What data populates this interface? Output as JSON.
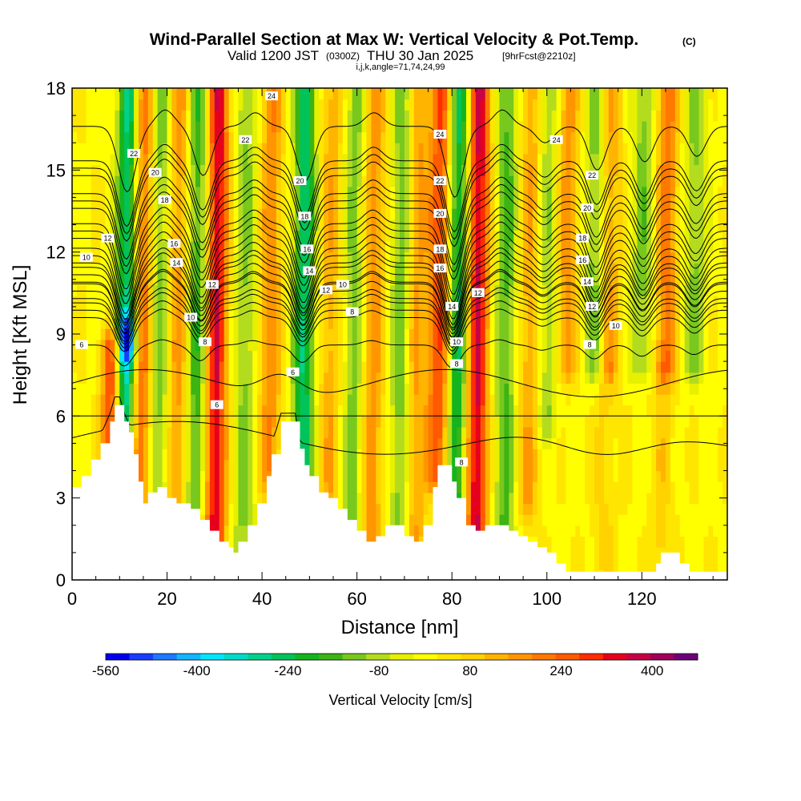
{
  "title": {
    "main": "Wind-Parallel Section at Max W: Vertical Velocity & Pot.Temp.",
    "copyright": "(C)",
    "line2_a": "Valid 1200 JST",
    "line2_b": "(0300Z)",
    "line2_c": "THU 30 Jan 2025",
    "line2_d": "[9hrFcst@2210z]",
    "line3": "i,j,k,angle=71,74,24,99"
  },
  "chart_data": {
    "type": "heatmap",
    "xlabel": "Distance [nm]",
    "ylabel": "Height [Kft MSL]",
    "xlim": [
      0,
      138
    ],
    "ylim": [
      0,
      18
    ],
    "x_ticks": [
      0,
      20,
      40,
      60,
      80,
      100,
      120
    ],
    "y_ticks": [
      0,
      3,
      6,
      9,
      12,
      15,
      18
    ],
    "colorbar": {
      "title": "Vertical Velocity [cm/s]",
      "tick_labels": [
        "-560",
        "-400",
        "-240",
        "-80",
        "80",
        "240",
        "400"
      ],
      "tick_values": [
        -560,
        -400,
        -240,
        -80,
        80,
        240,
        400
      ],
      "range": [
        -560,
        480
      ],
      "colors": [
        "#0000ee",
        "#1a3cff",
        "#1e78ff",
        "#14b4ff",
        "#00e6ff",
        "#00dcc8",
        "#00d28c",
        "#00c35a",
        "#14b41e",
        "#3cb414",
        "#78c81e",
        "#b4dc1e",
        "#e6f000",
        "#ffff00",
        "#ffe600",
        "#ffd200",
        "#ffb400",
        "#ff9600",
        "#ff7800",
        "#ff5a00",
        "#ff2d00",
        "#e6001e",
        "#c80046",
        "#a0005a",
        "#6e0078"
      ]
    },
    "terrain": {
      "x": [
        0,
        2,
        4,
        6,
        8,
        9,
        10,
        11,
        12,
        13,
        14,
        15,
        16,
        18,
        20,
        22,
        25,
        27,
        29,
        31,
        33,
        34,
        35,
        37,
        39,
        41,
        42,
        44,
        46,
        47,
        48,
        49,
        50,
        52,
        54,
        56,
        58,
        60,
        62,
        64,
        66,
        68,
        70,
        72,
        74,
        76,
        77,
        79,
        80,
        81,
        83,
        85,
        87,
        89,
        92,
        94,
        96,
        98,
        100,
        102,
        104,
        106,
        110,
        115,
        120,
        123,
        124,
        126,
        128,
        130,
        135,
        138
      ],
      "height_kft": [
        3.4,
        3.8,
        4.4,
        5.0,
        5.8,
        6.4,
        6.4,
        5.8,
        5.4,
        4.6,
        3.6,
        2.8,
        3.2,
        3.4,
        3.0,
        2.8,
        2.6,
        2.2,
        1.8,
        1.4,
        1.2,
        1.0,
        1.4,
        2.0,
        2.8,
        3.8,
        4.6,
        5.8,
        5.8,
        5.8,
        4.8,
        4.2,
        3.8,
        3.2,
        3.0,
        2.6,
        2.2,
        1.8,
        1.4,
        1.6,
        2.0,
        2.0,
        1.6,
        1.4,
        2.0,
        3.4,
        4.2,
        4.2,
        3.6,
        3.0,
        2.0,
        1.8,
        2.0,
        2.0,
        1.8,
        1.6,
        1.4,
        1.2,
        1.0,
        0.6,
        0.3,
        0.3,
        0.3,
        0.3,
        0.3,
        0.6,
        1.0,
        1.0,
        0.6,
        0.3,
        0.3,
        0.3
      ]
    },
    "w_features": [
      {
        "x": 8.5,
        "w": 360,
        "z0": 3.5,
        "z1": 8.5
      },
      {
        "x": 10.8,
        "w": -430,
        "z0": 5.5,
        "z1": 8.8
      },
      {
        "x": 11.5,
        "w": -300,
        "z0": 8.8,
        "z1": 18
      },
      {
        "x": 14.5,
        "w": 230,
        "z0": 3,
        "z1": 18
      },
      {
        "x": 18,
        "w": -160,
        "z0": 3,
        "z1": 18
      },
      {
        "x": 22,
        "w": 160,
        "z0": 3,
        "z1": 18
      },
      {
        "x": 26,
        "w": -200,
        "z0": 3,
        "z1": 18
      },
      {
        "x": 30,
        "w": 340,
        "z0": 1.2,
        "z1": 18
      },
      {
        "x": 36,
        "w": -130,
        "z0": 1,
        "z1": 18
      },
      {
        "x": 41.5,
        "w": 170,
        "z0": 4,
        "z1": 18
      },
      {
        "x": 48.5,
        "w": -280,
        "z0": 3.5,
        "z1": 18
      },
      {
        "x": 54,
        "w": 120,
        "z0": 2.5,
        "z1": 18
      },
      {
        "x": 59,
        "w": -140,
        "z0": 1.5,
        "z1": 18
      },
      {
        "x": 63,
        "w": 160,
        "z0": 1.5,
        "z1": 18
      },
      {
        "x": 69,
        "w": -160,
        "z0": 1.5,
        "z1": 18
      },
      {
        "x": 72,
        "w": 150,
        "z0": 1.5,
        "z1": 18
      },
      {
        "x": 77,
        "w": 260,
        "z0": 4,
        "z1": 18
      },
      {
        "x": 81,
        "w": -260,
        "z0": 3,
        "z1": 18
      },
      {
        "x": 85,
        "w": 360,
        "z0": 1.8,
        "z1": 18
      },
      {
        "x": 91,
        "w": -170,
        "z0": 2,
        "z1": 18
      },
      {
        "x": 96,
        "w": 130,
        "z0": 3,
        "z1": 18
      },
      {
        "x": 100,
        "w": -120,
        "z0": 6,
        "z1": 18
      },
      {
        "x": 104,
        "w": 160,
        "z0": 8,
        "z1": 18
      },
      {
        "x": 110,
        "w": -150,
        "z0": 8,
        "z1": 18
      },
      {
        "x": 113,
        "w": 140,
        "z0": 8,
        "z1": 18
      },
      {
        "x": 120,
        "w": -140,
        "z0": 8,
        "z1": 18
      },
      {
        "x": 125,
        "w": 200,
        "z0": 8,
        "z1": 18
      },
      {
        "x": 131,
        "w": -130,
        "z0": 8,
        "z1": 18
      },
      {
        "x": 112,
        "w": 60,
        "z0": 0.5,
        "z1": 7.5
      },
      {
        "x": 124,
        "w": 70,
        "z0": 0.5,
        "z1": 7.5
      }
    ],
    "contours": {
      "levels": [
        6,
        8,
        10,
        12,
        14,
        16,
        18,
        20,
        22,
        24
      ],
      "labels": [
        {
          "text": "6",
          "x": 2,
          "y": 8.6
        },
        {
          "text": "10",
          "x": 3,
          "y": 11.8
        },
        {
          "text": "12",
          "x": 7.5,
          "y": 12.5
        },
        {
          "text": "22",
          "x": 13,
          "y": 15.6
        },
        {
          "text": "20",
          "x": 17.5,
          "y": 14.9
        },
        {
          "text": "18",
          "x": 19.5,
          "y": 13.9
        },
        {
          "text": "16",
          "x": 21.5,
          "y": 12.3
        },
        {
          "text": "14",
          "x": 22,
          "y": 11.6
        },
        {
          "text": "10",
          "x": 25,
          "y": 9.6
        },
        {
          "text": "8",
          "x": 28,
          "y": 8.7
        },
        {
          "text": "12",
          "x": 29.5,
          "y": 10.8
        },
        {
          "text": "6",
          "x": 30.5,
          "y": 6.4
        },
        {
          "text": "22",
          "x": 36.5,
          "y": 16.1
        },
        {
          "text": "24",
          "x": 42,
          "y": 17.7
        },
        {
          "text": "6",
          "x": 46.5,
          "y": 7.6
        },
        {
          "text": "20",
          "x": 48,
          "y": 14.6
        },
        {
          "text": "18",
          "x": 49,
          "y": 13.3
        },
        {
          "text": "16",
          "x": 49.5,
          "y": 12.1
        },
        {
          "text": "14",
          "x": 50,
          "y": 11.3
        },
        {
          "text": "12",
          "x": 53.5,
          "y": 10.6
        },
        {
          "text": "10",
          "x": 57,
          "y": 10.8
        },
        {
          "text": "8",
          "x": 59,
          "y": 9.8
        },
        {
          "text": "24",
          "x": 77.5,
          "y": 16.3
        },
        {
          "text": "22",
          "x": 77.5,
          "y": 14.6
        },
        {
          "text": "20",
          "x": 77.5,
          "y": 13.4
        },
        {
          "text": "18",
          "x": 77.5,
          "y": 12.1
        },
        {
          "text": "16",
          "x": 77.5,
          "y": 11.4
        },
        {
          "text": "14",
          "x": 80,
          "y": 10.0
        },
        {
          "text": "10",
          "x": 81,
          "y": 8.7
        },
        {
          "text": "8",
          "x": 81,
          "y": 7.9
        },
        {
          "text": "12",
          "x": 85.5,
          "y": 10.5
        },
        {
          "text": "8",
          "x": 82,
          "y": 4.3
        },
        {
          "text": "24",
          "x": 102,
          "y": 16.1
        },
        {
          "text": "22",
          "x": 109.5,
          "y": 14.8
        },
        {
          "text": "20",
          "x": 108.5,
          "y": 13.6
        },
        {
          "text": "18",
          "x": 107.5,
          "y": 12.5
        },
        {
          "text": "16",
          "x": 107.5,
          "y": 11.7
        },
        {
          "text": "14",
          "x": 108.5,
          "y": 10.9
        },
        {
          "text": "12",
          "x": 109.5,
          "y": 10.0
        },
        {
          "text": "10",
          "x": 114.5,
          "y": 9.3
        },
        {
          "text": "8",
          "x": 109,
          "y": 8.6
        }
      ]
    },
    "grid": false,
    "legend": "bottom"
  }
}
